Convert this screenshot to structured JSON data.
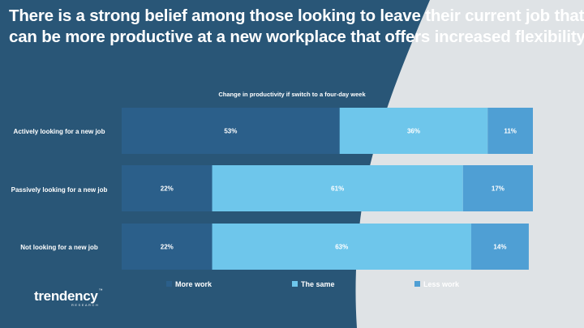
{
  "slide": {
    "title_line1": "There is a strong belief among those looking to leave their current job that t",
    "title_line2": "can be more productive at a new workplace that offers increased flexibility."
  },
  "colors": {
    "dark_blue": "#2b5f8a",
    "light_blue": "#6ec6eb",
    "mid_blue": "#4f9fd4",
    "bg_dark": "#295677",
    "bg_light": "#dfe3e6"
  },
  "chart_data": {
    "type": "stacked-bar-horizontal",
    "title": "Change in productivity if switch to a four-day week",
    "categories": [
      "Actively looking for a new job",
      "Passively looking for a new job",
      "Not looking for a new job"
    ],
    "series": [
      {
        "name": "More work",
        "values": [
          53,
          22,
          22
        ],
        "labels": [
          "53%",
          "22%",
          "22%"
        ]
      },
      {
        "name": "The same",
        "values": [
          36,
          61,
          63
        ],
        "labels": [
          "36%",
          "61%",
          "63%"
        ]
      },
      {
        "name": "Less work",
        "values": [
          11,
          17,
          14
        ],
        "labels": [
          "11%",
          "17%",
          "14%"
        ]
      }
    ],
    "xlim": [
      0,
      100
    ],
    "legend": "bottom"
  },
  "logo": {
    "name": "trendency",
    "tm": "™",
    "sub": "RESEARCH"
  }
}
